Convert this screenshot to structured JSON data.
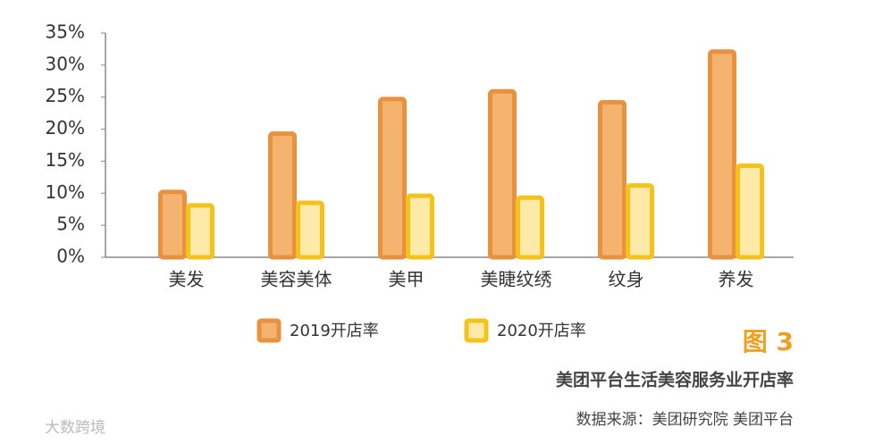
{
  "chart_data": {
    "type": "bar",
    "categories": [
      "美发",
      "美容美体",
      "美甲",
      "美睫纹绣",
      "纹身",
      "养发"
    ],
    "series": [
      {
        "name": "2019开店率",
        "color": "#e8913f",
        "values": [
          10.2,
          19.3,
          24.7,
          25.9,
          24.2,
          32.1
        ]
      },
      {
        "name": "2020开店率",
        "color": "#f5c21a",
        "values": [
          8.1,
          8.5,
          9.6,
          9.3,
          11.2,
          14.3
        ]
      }
    ],
    "ylim": [
      0,
      35
    ],
    "yticks": [
      {
        "value": 0,
        "label": "0%"
      },
      {
        "value": 5,
        "label": "5%"
      },
      {
        "value": 10,
        "label": "10%"
      },
      {
        "value": 15,
        "label": "15%"
      },
      {
        "value": 20,
        "label": "20%"
      },
      {
        "value": 25,
        "label": "25%"
      },
      {
        "value": 30,
        "label": "30%"
      },
      {
        "value": 35,
        "label": "35%"
      }
    ],
    "figure_label": "图 3",
    "title": "美团平台生活美容服务业开店率",
    "source": "数据来源：美团研究院  美团平台",
    "watermark": "大数跨境"
  }
}
